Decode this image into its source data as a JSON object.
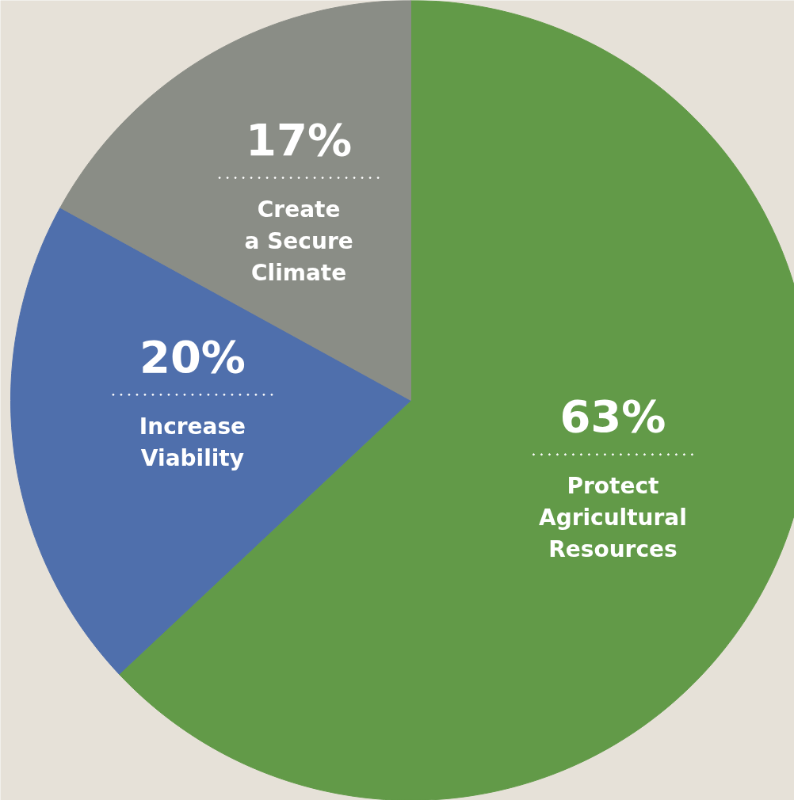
{
  "chart_data": {
    "type": "pie",
    "categories": [
      "Protect\nAgricultural\nResources",
      "Increase\nViability",
      "Create\na Secure\nClimate"
    ],
    "values": [
      63,
      20,
      17
    ],
    "colors": [
      "#629a48",
      "#4f6fac",
      "#8a8d86"
    ],
    "value_labels": [
      "63%",
      "20%",
      "17%"
    ]
  }
}
